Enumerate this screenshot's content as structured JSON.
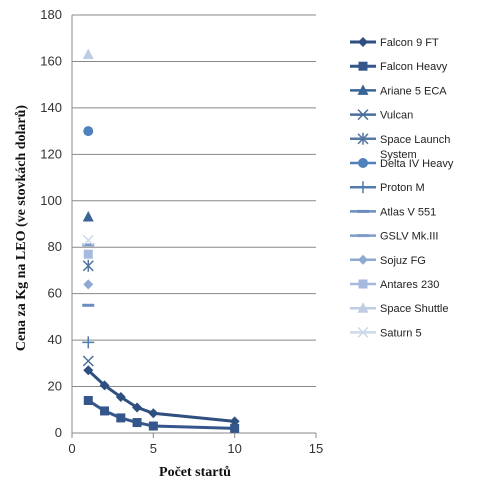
{
  "chart_data": {
    "type": "scatter",
    "title": "",
    "xlabel": "Počet startů",
    "ylabel": "Cena za Kg na LEO (ve stovkách dolarů)",
    "xlim": [
      0,
      15
    ],
    "ylim": [
      0,
      180
    ],
    "xticks": [
      "0",
      "5",
      "10",
      "15"
    ],
    "yticks": [
      "0",
      "20",
      "40",
      "60",
      "80",
      "100",
      "120",
      "140",
      "160",
      "180"
    ],
    "grid": "horizontal",
    "legend_position": "right",
    "series": [
      {
        "name": "Falcon 9 FT",
        "color": "#2e4f7f",
        "marker": "diamond",
        "line": true,
        "points": [
          [
            1,
            27
          ],
          [
            2,
            20.5
          ],
          [
            3,
            15.5
          ],
          [
            4,
            11
          ],
          [
            5,
            8.5
          ],
          [
            10,
            5
          ]
        ]
      },
      {
        "name": "Falcon Heavy",
        "color": "#34568b",
        "marker": "square",
        "line": true,
        "points": [
          [
            1,
            14
          ],
          [
            2,
            9.5
          ],
          [
            3,
            6.5
          ],
          [
            4,
            4.5
          ],
          [
            5,
            3
          ],
          [
            10,
            2
          ]
        ]
      },
      {
        "name": "Ariane 5 ECA",
        "color": "#3b6496",
        "marker": "triangle",
        "line": false,
        "points": [
          [
            1,
            93
          ]
        ]
      },
      {
        "name": "Vulcan",
        "color": "#4a6f9c",
        "marker": "x",
        "line": false,
        "points": [
          [
            1,
            31
          ]
        ]
      },
      {
        "name": "Space Launch System",
        "color": "#5577a3",
        "marker": "star",
        "line": false,
        "points": [
          [
            1,
            72
          ]
        ]
      },
      {
        "name": "Delta IV Heavy",
        "color": "#4f81bd",
        "marker": "circle",
        "line": false,
        "points": [
          [
            1,
            130
          ]
        ]
      },
      {
        "name": "Proton M",
        "color": "#4f7bb0",
        "marker": "plus",
        "line": false,
        "points": [
          [
            1,
            39
          ]
        ]
      },
      {
        "name": "Atlas V 551",
        "color": "#6b8cc0",
        "marker": "dash",
        "line": false,
        "points": [
          [
            1,
            55
          ]
        ]
      },
      {
        "name": "GSLV Mk.III",
        "color": "#7f9cc8",
        "marker": "dash",
        "line": false,
        "points": [
          [
            1,
            81
          ]
        ]
      },
      {
        "name": "Sojuz FG",
        "color": "#8ea9d2",
        "marker": "diamond",
        "line": false,
        "points": [
          [
            1,
            64
          ]
        ]
      },
      {
        "name": "Antares 230",
        "color": "#a5badc",
        "marker": "square",
        "line": false,
        "points": [
          [
            1,
            77
          ]
        ]
      },
      {
        "name": "Space Shuttle",
        "color": "#bfcde4",
        "marker": "triangle",
        "line": false,
        "points": [
          [
            1,
            163
          ]
        ]
      },
      {
        "name": "Saturn 5",
        "color": "#cdd8ea",
        "marker": "x",
        "line": false,
        "points": [
          [
            1,
            83
          ]
        ]
      }
    ]
  }
}
